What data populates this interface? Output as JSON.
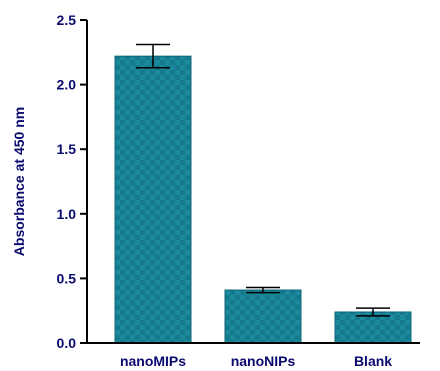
{
  "chart_data": {
    "type": "bar",
    "title": "",
    "xlabel": "",
    "ylabel": "Absorbance at 450 nm",
    "categories": [
      "nanoMIPs",
      "nanoNIPs",
      "Blank"
    ],
    "values": [
      2.22,
      0.41,
      0.24
    ],
    "error": [
      0.09,
      0.02,
      0.03
    ],
    "ylim": [
      0,
      2.5
    ],
    "yticks": [
      0.0,
      0.5,
      1.0,
      1.5,
      2.0,
      2.5
    ],
    "ytick_labels": [
      "0.0",
      "0.5",
      "1.0",
      "1.5",
      "2.0",
      "2.5"
    ],
    "grid": false,
    "legend": "none",
    "colors": {
      "bar": "#1c8a9e",
      "bar_check": "#15788b",
      "axis": "#000000",
      "text": "#0a0a6e"
    }
  }
}
